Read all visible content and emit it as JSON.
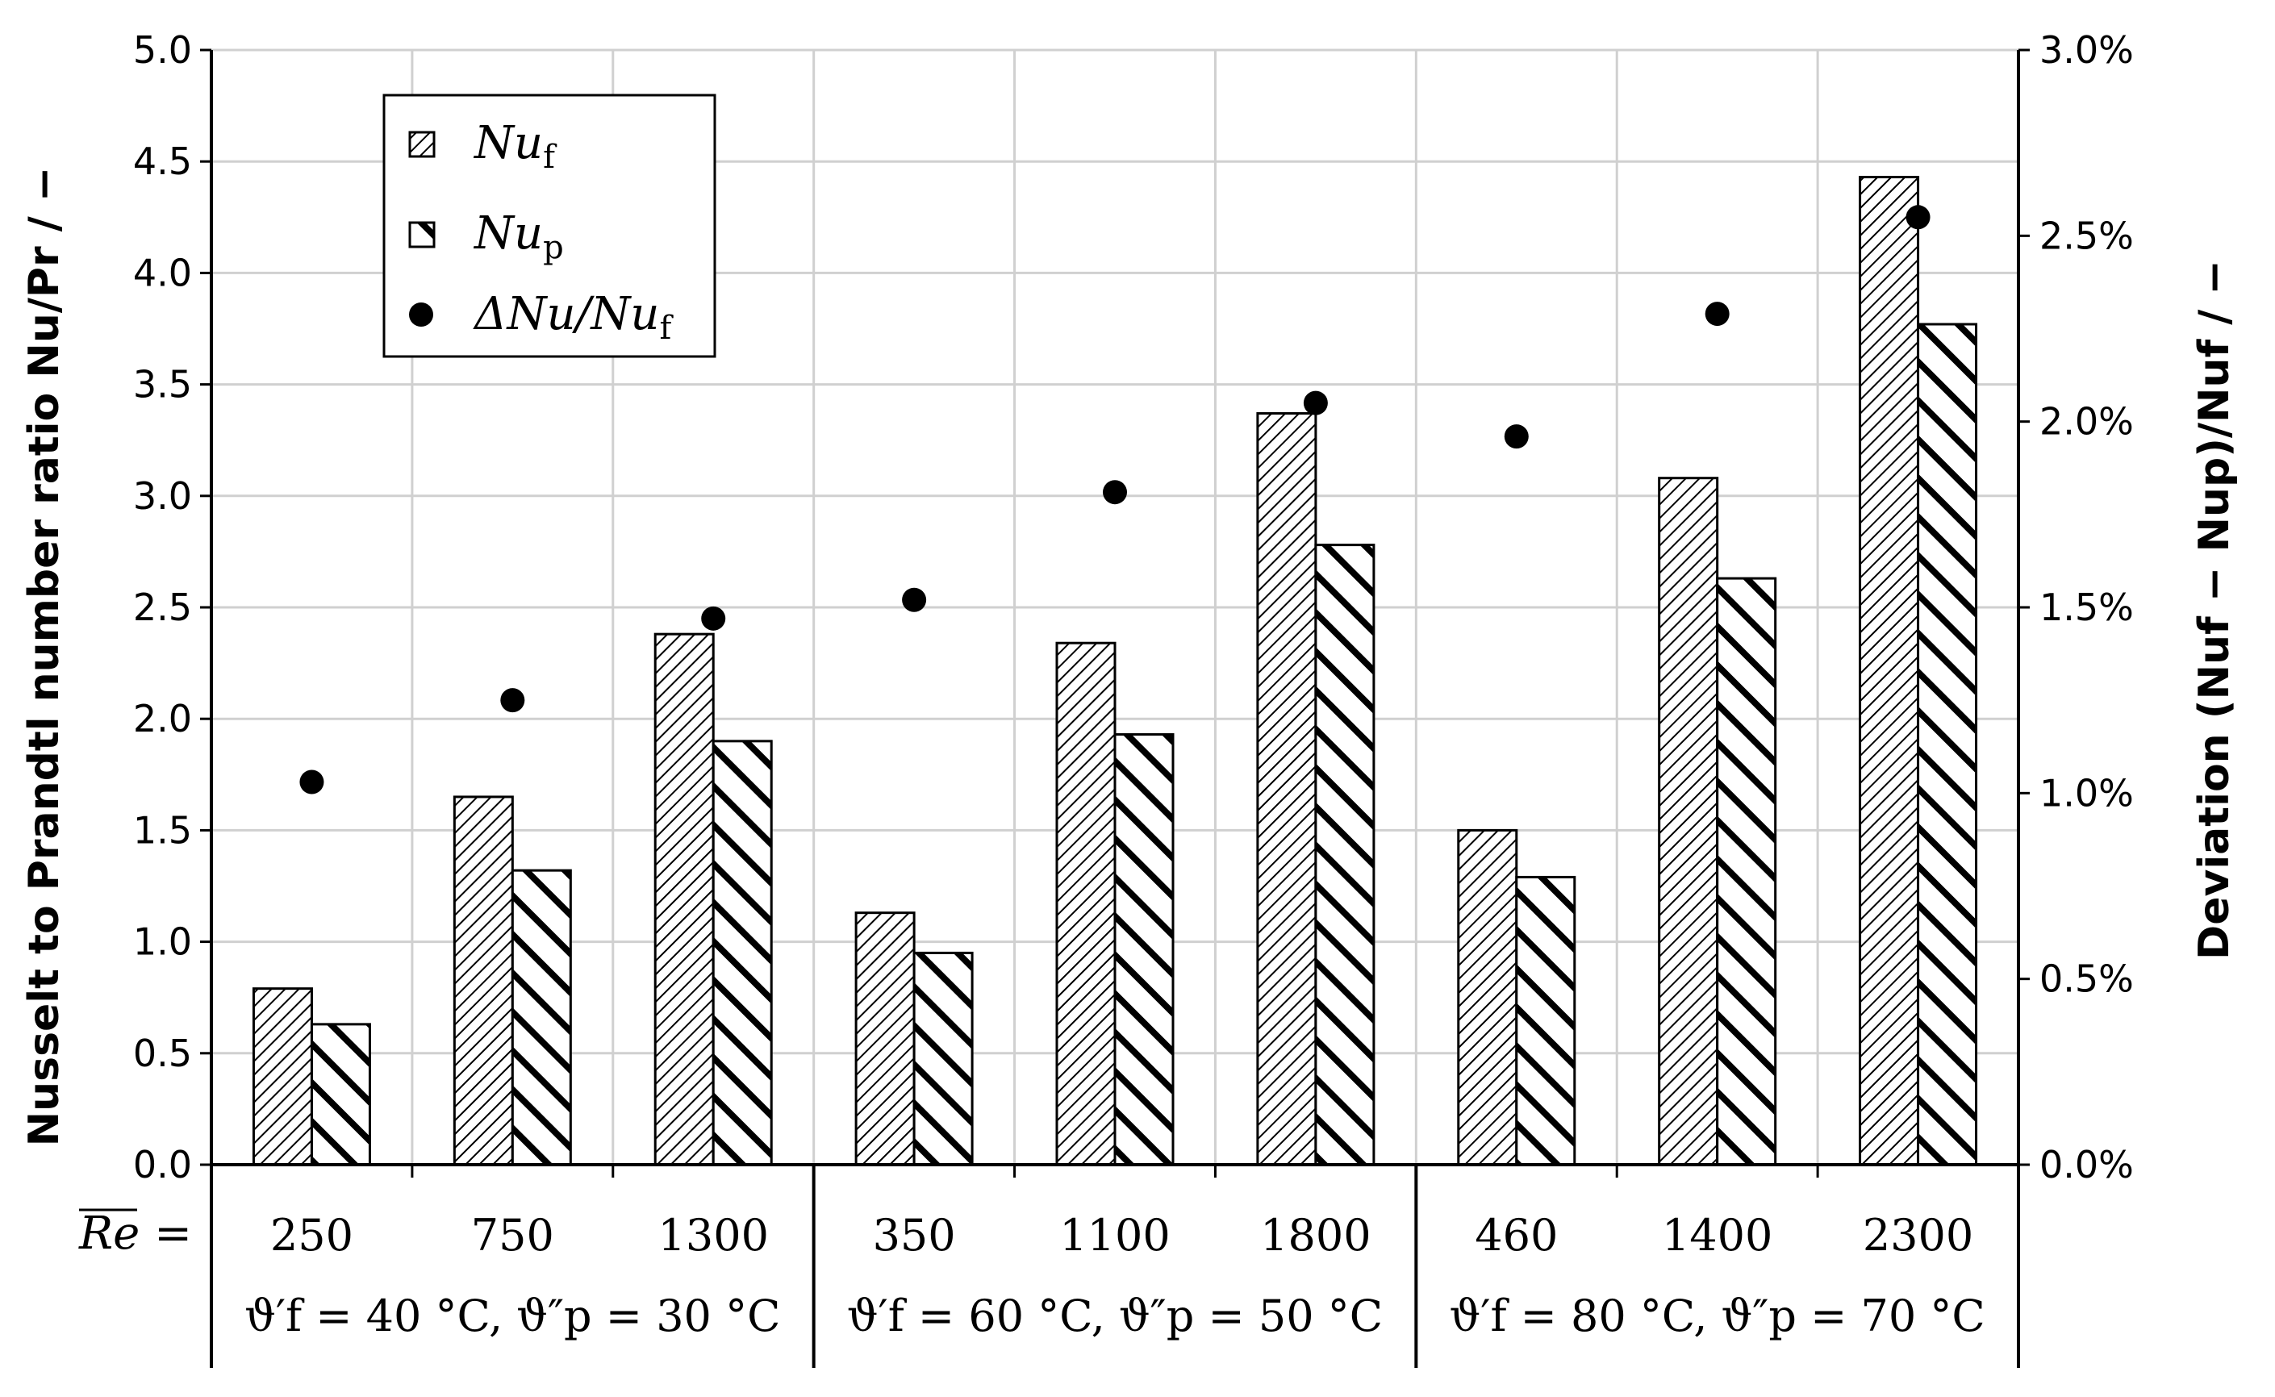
{
  "chart_data": {
    "type": "bar",
    "title": "",
    "xlabel_prefix": "Re =",
    "categories": [
      "250",
      "750",
      "1300",
      "350",
      "1100",
      "1800",
      "460",
      "1400",
      "2300"
    ],
    "groups": [
      {
        "label": "ϑ′f = 40 °C, ϑ″p = 30 °C",
        "categories": [
          "250",
          "750",
          "1300"
        ]
      },
      {
        "label": "ϑ′f = 60 °C, ϑ″p = 50 °C",
        "categories": [
          "350",
          "1100",
          "1800"
        ]
      },
      {
        "label": "ϑ′f = 80 °C, ϑ″p = 70 °C",
        "categories": [
          "460",
          "1400",
          "2300"
        ]
      }
    ],
    "series": [
      {
        "name": "Nuf",
        "axis": "left",
        "kind": "bar",
        "pattern": "fine-hatch",
        "values": [
          0.79,
          1.65,
          2.38,
          1.13,
          2.34,
          3.37,
          1.5,
          3.08,
          4.43
        ]
      },
      {
        "name": "Nup",
        "axis": "left",
        "kind": "bar",
        "pattern": "coarse-hatch",
        "values": [
          0.63,
          1.32,
          1.9,
          0.95,
          1.93,
          2.78,
          1.29,
          2.63,
          3.77
        ]
      },
      {
        "name": "ΔNu/Nuf",
        "axis": "right",
        "kind": "scatter",
        "unit": "%",
        "values": [
          1.03,
          1.25,
          1.47,
          1.52,
          1.81,
          2.05,
          1.96,
          2.29,
          2.55
        ]
      }
    ],
    "ylabel": "Nusselt to Prandtl number ratio Nu/Pr / −",
    "y2label": "Deviation (Nuf − Nup)/Nuf / −",
    "ylim": [
      0,
      5
    ],
    "y2lim": [
      0,
      3
    ],
    "yticks": [
      "0.0",
      "0.5",
      "1.0",
      "1.5",
      "2.0",
      "2.5",
      "3.0",
      "3.5",
      "4.0",
      "4.5",
      "5.0"
    ],
    "y2ticks": [
      "0.0%",
      "0.5%",
      "1.0%",
      "1.5%",
      "2.0%",
      "2.5%",
      "3.0%"
    ],
    "legend": [
      {
        "main": "Nu",
        "sub": "f"
      },
      {
        "main": "Nu",
        "sub": "p"
      },
      {
        "main": "ΔNu/Nu",
        "sub": "f"
      }
    ],
    "legend_position": "top-left",
    "grid": true
  },
  "colors": {
    "bars_edge": "#000000",
    "grid": "#d0d0d0",
    "marker": "#000000"
  }
}
